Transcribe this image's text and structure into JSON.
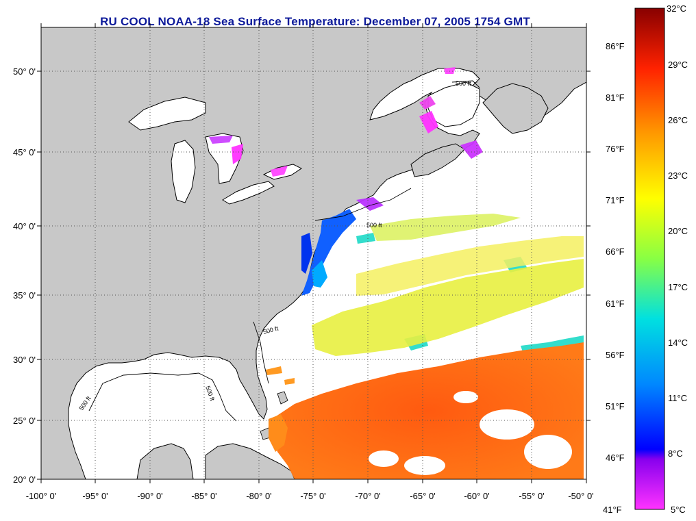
{
  "title": "RU COOL  NOAA-18  Sea Surface Temperature:  December 07, 2005 1754 GMT",
  "map": {
    "lon_labels": [
      "-100° 0'",
      "-95° 0'",
      "-90° 0'",
      "-85° 0'",
      "-80° 0'",
      "-75° 0'",
      "-70° 0'",
      "-65° 0'",
      "-60° 0'",
      "-55° 0'",
      "-50° 0'"
    ],
    "lat_labels": [
      "50° 0'",
      "45° 0'",
      "40° 0'",
      "35° 0'",
      "30° 0'",
      "25° 0'",
      "20° 0'"
    ],
    "isobath_label": "500 ft"
  },
  "colorbar": {
    "celsius_labels": [
      "32°C",
      "29°C",
      "26°C",
      "23°C",
      "20°C",
      "17°C",
      "14°C",
      "11°C",
      "8°C",
      "5°C"
    ],
    "fahrenheit_labels": [
      "86°F",
      "81°F",
      "76°F",
      "71°F",
      "66°F",
      "61°F",
      "56°F",
      "51°F",
      "46°F",
      "41°F"
    ],
    "range_c": [
      5,
      32
    ]
  },
  "colors": {
    "land": "#c8c8c8",
    "ocean_missing": "#ffffff",
    "title": "#0d1a9a"
  }
}
